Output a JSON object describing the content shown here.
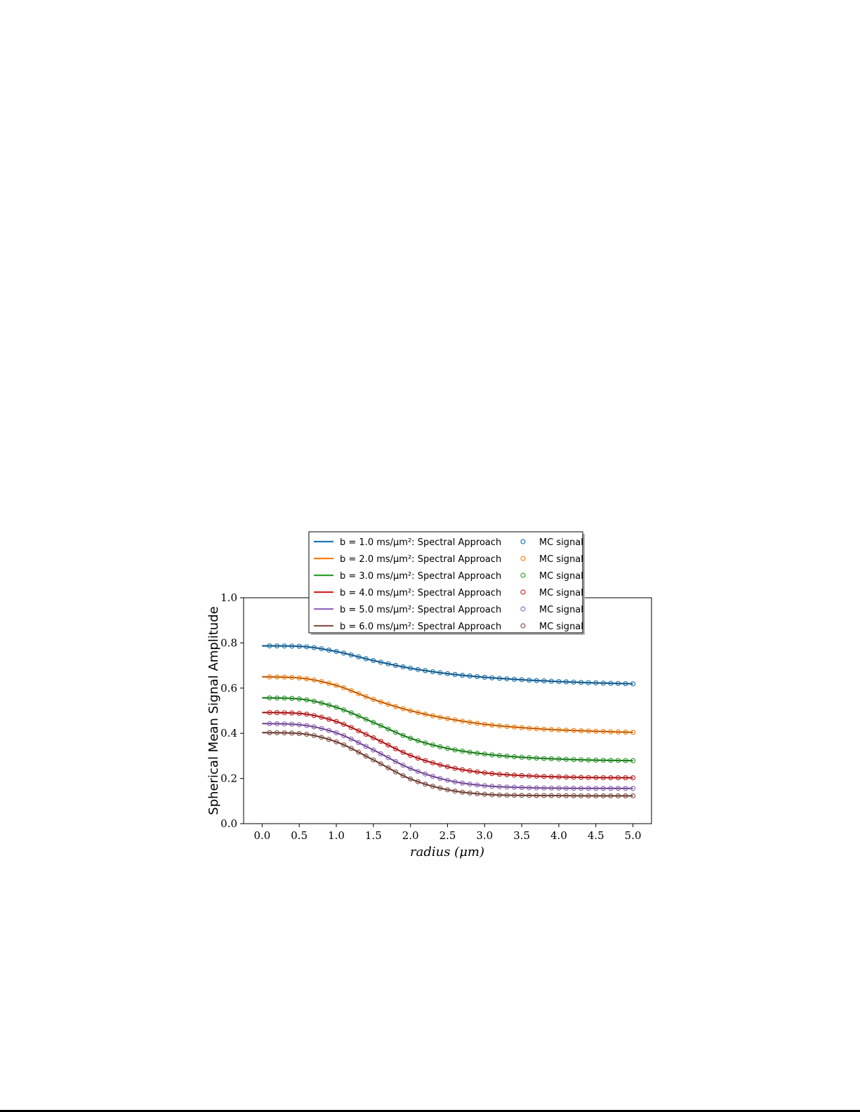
{
  "chart_data": {
    "type": "line",
    "xlabel": "radius (μm)",
    "ylabel": "Spherical Mean Signal Amplitude",
    "xlim": [
      -0.25,
      5.25
    ],
    "ylim": [
      0.0,
      1.0
    ],
    "xticks": [
      "0.0",
      "0.5",
      "1.0",
      "1.5",
      "2.0",
      "2.5",
      "3.0",
      "3.5",
      "4.0",
      "4.5",
      "5.0"
    ],
    "yticks": [
      "0.0",
      "0.2",
      "0.4",
      "0.6",
      "0.8",
      "1.0"
    ],
    "legend_position": "upper center, overlapping top of axes",
    "x": [
      0.0,
      0.5,
      1.0,
      1.5,
      2.0,
      2.5,
      3.0,
      3.5,
      4.0,
      4.5,
      5.0
    ],
    "series": [
      {
        "name": "b = 1.0 ms/μm²: Spectral Approach",
        "marker_name": "MC signal",
        "color": "#1f77b4",
        "values": [
          0.787,
          0.785,
          0.762,
          0.722,
          0.688,
          0.664,
          0.648,
          0.637,
          0.629,
          0.623,
          0.619
        ]
      },
      {
        "name": "b = 2.0 ms/μm²: Spectral Approach",
        "marker_name": "MC signal",
        "color": "#ff7f0e",
        "values": [
          0.65,
          0.645,
          0.612,
          0.55,
          0.5,
          0.465,
          0.44,
          0.425,
          0.415,
          0.409,
          0.404
        ]
      },
      {
        "name": "b = 3.0 ms/μm²: Spectral Approach",
        "marker_name": "MC signal",
        "color": "#2ca02c",
        "values": [
          0.557,
          0.552,
          0.515,
          0.448,
          0.378,
          0.333,
          0.308,
          0.294,
          0.286,
          0.281,
          0.279
        ]
      },
      {
        "name": "b = 4.0 ms/μm²: Spectral Approach",
        "marker_name": "MC signal",
        "color": "#d62728",
        "values": [
          0.492,
          0.488,
          0.452,
          0.38,
          0.302,
          0.252,
          0.225,
          0.213,
          0.207,
          0.204,
          0.203
        ]
      },
      {
        "name": "b = 5.0 ms/μm²: Spectral Approach",
        "marker_name": "MC signal",
        "color": "#9467bd",
        "values": [
          0.443,
          0.438,
          0.402,
          0.326,
          0.244,
          0.192,
          0.168,
          0.16,
          0.157,
          0.156,
          0.156
        ]
      },
      {
        "name": "b = 6.0 ms/μm²: Spectral Approach",
        "marker_name": "MC signal",
        "color": "#8c564b",
        "values": [
          0.403,
          0.399,
          0.362,
          0.282,
          0.198,
          0.15,
          0.13,
          0.125,
          0.124,
          0.123,
          0.123
        ]
      }
    ]
  }
}
